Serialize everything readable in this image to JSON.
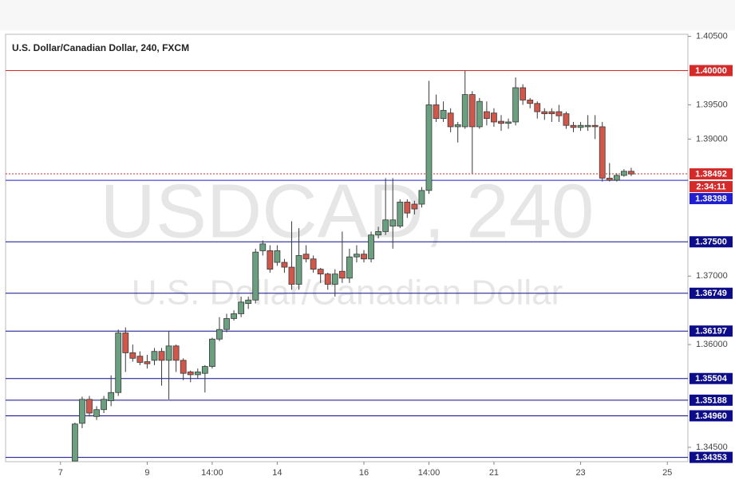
{
  "chart_data": {
    "type": "candlestick",
    "title": "U.S. Dollar/Canadian Dollar, 240, FXCM",
    "watermark": "USDCAD, 240",
    "watermark_subtitle": "U.S. Dollar/Canadian Dollar",
    "up_color": "#6aa07f",
    "down_color": "#d0574a",
    "x": [
      2,
      3,
      4,
      5,
      6,
      7,
      8,
      9,
      10,
      11,
      12,
      13,
      14,
      15,
      16,
      17,
      18,
      19,
      20,
      21,
      22,
      23,
      24,
      25,
      26,
      27,
      28,
      29,
      30,
      31,
      32,
      33,
      34,
      35,
      36,
      37,
      38,
      39,
      40,
      41,
      42,
      43,
      44,
      45,
      46,
      47,
      48,
      49,
      50,
      51,
      52,
      53,
      54,
      55,
      56,
      57,
      58,
      59,
      60,
      61,
      62,
      63,
      64,
      65,
      66,
      67,
      68,
      69,
      70,
      71,
      72,
      73,
      74,
      75,
      76,
      77,
      78,
      79
    ],
    "open": [
      1.343,
      1.3485,
      1.352,
      1.3495,
      1.3505,
      1.3518,
      1.353,
      1.3617,
      1.3588,
      1.3583,
      1.3575,
      1.3577,
      1.359,
      1.3577,
      1.3598,
      1.3577,
      1.356,
      1.3556,
      1.3558,
      1.3568,
      1.3608,
      1.3622,
      1.3638,
      1.3645,
      1.366,
      1.3665,
      1.3737,
      1.3737,
      1.372,
      1.372,
      1.3713,
      1.3688,
      1.3732,
      1.3725,
      1.371,
      1.3703,
      1.3688,
      1.3707,
      1.3697,
      1.3728,
      1.3732,
      1.3725,
      1.376,
      1.3765,
      1.3773,
      1.3773,
      1.3808,
      1.3805,
      1.3805,
      1.3825,
      1.395,
      1.393,
      1.3938,
      1.3918,
      1.3918,
      1.3965,
      1.3918,
      1.394,
      1.3938,
      1.3926,
      1.3923,
      1.3925,
      1.3975,
      1.3957,
      1.3952,
      1.394,
      1.394,
      1.394,
      1.3937,
      1.392,
      1.3917,
      1.3918,
      1.392,
      1.3918,
      1.3843,
      1.384,
      1.3847,
      1.3853
    ],
    "high": [
      1.3486,
      1.3524,
      1.3525,
      1.351,
      1.3525,
      1.3555,
      1.3622,
      1.3625,
      1.36,
      1.359,
      1.3585,
      1.3595,
      1.3595,
      1.362,
      1.36,
      1.358,
      1.3562,
      1.3565,
      1.357,
      1.361,
      1.364,
      1.3645,
      1.365,
      1.367,
      1.367,
      1.374,
      1.3752,
      1.3745,
      1.3745,
      1.3725,
      1.378,
      1.377,
      1.3745,
      1.373,
      1.3712,
      1.3705,
      1.371,
      1.3765,
      1.374,
      1.3745,
      1.3738,
      1.3765,
      1.3772,
      1.3843,
      1.3843,
      1.3812,
      1.3812,
      1.381,
      1.383,
      1.3985,
      1.3965,
      1.3955,
      1.3945,
      1.3925,
      1.4,
      1.397,
      1.396,
      1.3955,
      1.3945,
      1.3935,
      1.393,
      1.399,
      1.398,
      1.396,
      1.3955,
      1.3945,
      1.3945,
      1.395,
      1.394,
      1.3925,
      1.3925,
      1.3935,
      1.3935,
      1.3925,
      1.3865,
      1.385,
      1.3856,
      1.3858
    ],
    "low": [
      1.343,
      1.3478,
      1.3495,
      1.349,
      1.35,
      1.351,
      1.3525,
      1.356,
      1.3575,
      1.357,
      1.3565,
      1.357,
      1.354,
      1.352,
      1.356,
      1.3548,
      1.3545,
      1.355,
      1.353,
      1.3565,
      1.3605,
      1.3618,
      1.3635,
      1.364,
      1.3652,
      1.366,
      1.373,
      1.3705,
      1.3715,
      1.3705,
      1.368,
      1.368,
      1.372,
      1.3705,
      1.369,
      1.368,
      1.367,
      1.369,
      1.369,
      1.372,
      1.372,
      1.372,
      1.3755,
      1.376,
      1.374,
      1.377,
      1.3785,
      1.379,
      1.38,
      1.382,
      1.3925,
      1.3925,
      1.391,
      1.3895,
      1.3915,
      1.385,
      1.3915,
      1.392,
      1.3918,
      1.3912,
      1.3915,
      1.392,
      1.395,
      1.3945,
      1.393,
      1.3928,
      1.3925,
      1.3925,
      1.3915,
      1.391,
      1.3912,
      1.3912,
      1.39,
      1.3838,
      1.3838,
      1.3838,
      1.3845,
      1.3846
    ],
    "close": [
      1.3484,
      1.352,
      1.35,
      1.3505,
      1.352,
      1.353,
      1.3617,
      1.3588,
      1.358,
      1.3574,
      1.3572,
      1.359,
      1.3577,
      1.3598,
      1.3577,
      1.3558,
      1.3556,
      1.356,
      1.3568,
      1.3608,
      1.3622,
      1.3638,
      1.3645,
      1.3662,
      1.3665,
      1.3735,
      1.3747,
      1.371,
      1.3737,
      1.3713,
      1.3688,
      1.373,
      1.3725,
      1.371,
      1.3703,
      1.3688,
      1.3703,
      1.3697,
      1.3728,
      1.3732,
      1.3725,
      1.376,
      1.3765,
      1.3782,
      1.3782,
      1.3808,
      1.3792,
      1.3798,
      1.3825,
      1.395,
      1.393,
      1.3942,
      1.3918,
      1.3921,
      1.3965,
      1.3918,
      1.3955,
      1.393,
      1.3925,
      1.3923,
      1.3925,
      1.3975,
      1.3957,
      1.3952,
      1.394,
      1.3937,
      1.3937,
      1.3934,
      1.392,
      1.3917,
      1.392,
      1.392,
      1.3918,
      1.3843,
      1.384,
      1.3847,
      1.3853,
      1.3849
    ],
    "xlim": [
      -7.6,
      86.85
    ],
    "xticks": [
      {
        "value": 0,
        "label": "7"
      },
      {
        "value": 12,
        "label": "9"
      },
      {
        "value": 21,
        "label": "14:00"
      },
      {
        "value": 30,
        "label": "14"
      },
      {
        "value": 42,
        "label": "16"
      },
      {
        "value": 51,
        "label": "14:00"
      },
      {
        "value": 60,
        "label": "21"
      },
      {
        "value": 72,
        "label": "23"
      },
      {
        "value": 84,
        "label": "25"
      }
    ],
    "ylim": [
      1.3429,
      1.4053
    ],
    "yticks": [
      {
        "value": 1.405,
        "label": "1.40500"
      },
      {
        "value": 1.395,
        "label": "1.39500"
      },
      {
        "value": 1.39,
        "label": "1.39000"
      },
      {
        "value": 1.37,
        "label": "1.37000"
      },
      {
        "value": 1.36,
        "label": "1.36000"
      },
      {
        "value": 1.345,
        "label": "1.34500"
      }
    ],
    "lines": [
      {
        "value": 1.4,
        "label": "1.40000",
        "color": "#d42a2a"
      },
      {
        "value": 1.38492,
        "label": "1.38492",
        "color": "#d42a2a",
        "style": "dotted",
        "countdown": "2:34:11"
      },
      {
        "value": 1.38398,
        "label": "1.38398",
        "color": "#1f1fcf"
      },
      {
        "value": 1.375,
        "label": "1.37500",
        "color": "#0d0d8a"
      },
      {
        "value": 1.36749,
        "label": "1.36749",
        "color": "#0d0d8a"
      },
      {
        "value": 1.36197,
        "label": "1.36197",
        "color": "#0d0d8a"
      },
      {
        "value": 1.35504,
        "label": "1.35504",
        "color": "#0d0d8a"
      },
      {
        "value": 1.35188,
        "label": "1.35188",
        "color": "#0d0d8a"
      },
      {
        "value": 1.3496,
        "label": "1.34960",
        "color": "#0d0d8a"
      },
      {
        "value": 1.34353,
        "label": "1.34353",
        "color": "#0d0d8a"
      }
    ]
  }
}
